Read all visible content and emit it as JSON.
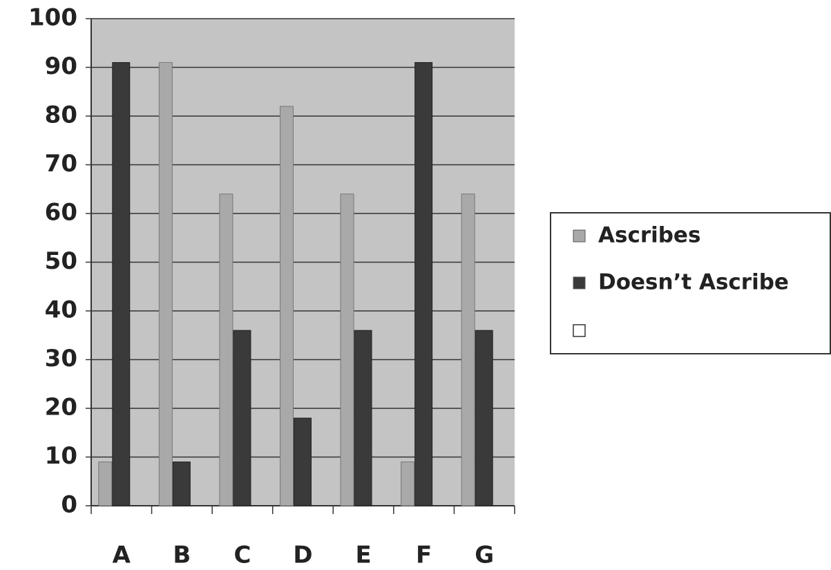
{
  "chart_data": {
    "type": "bar",
    "categories": [
      "A",
      "B",
      "C",
      "D",
      "E",
      "F",
      "G"
    ],
    "series": [
      {
        "name": "Ascribes",
        "color": "#a9a9a9",
        "values": [
          9,
          91,
          64,
          82,
          64,
          9,
          64
        ]
      },
      {
        "name": "Doesn’t Ascribe",
        "color": "#3a3a3a",
        "values": [
          91,
          9,
          36,
          18,
          36,
          91,
          36
        ]
      }
    ],
    "ylim": [
      0,
      100
    ],
    "yticks": [
      0,
      10,
      20,
      30,
      40,
      50,
      60,
      70,
      80,
      90,
      100
    ],
    "grid": true
  }
}
